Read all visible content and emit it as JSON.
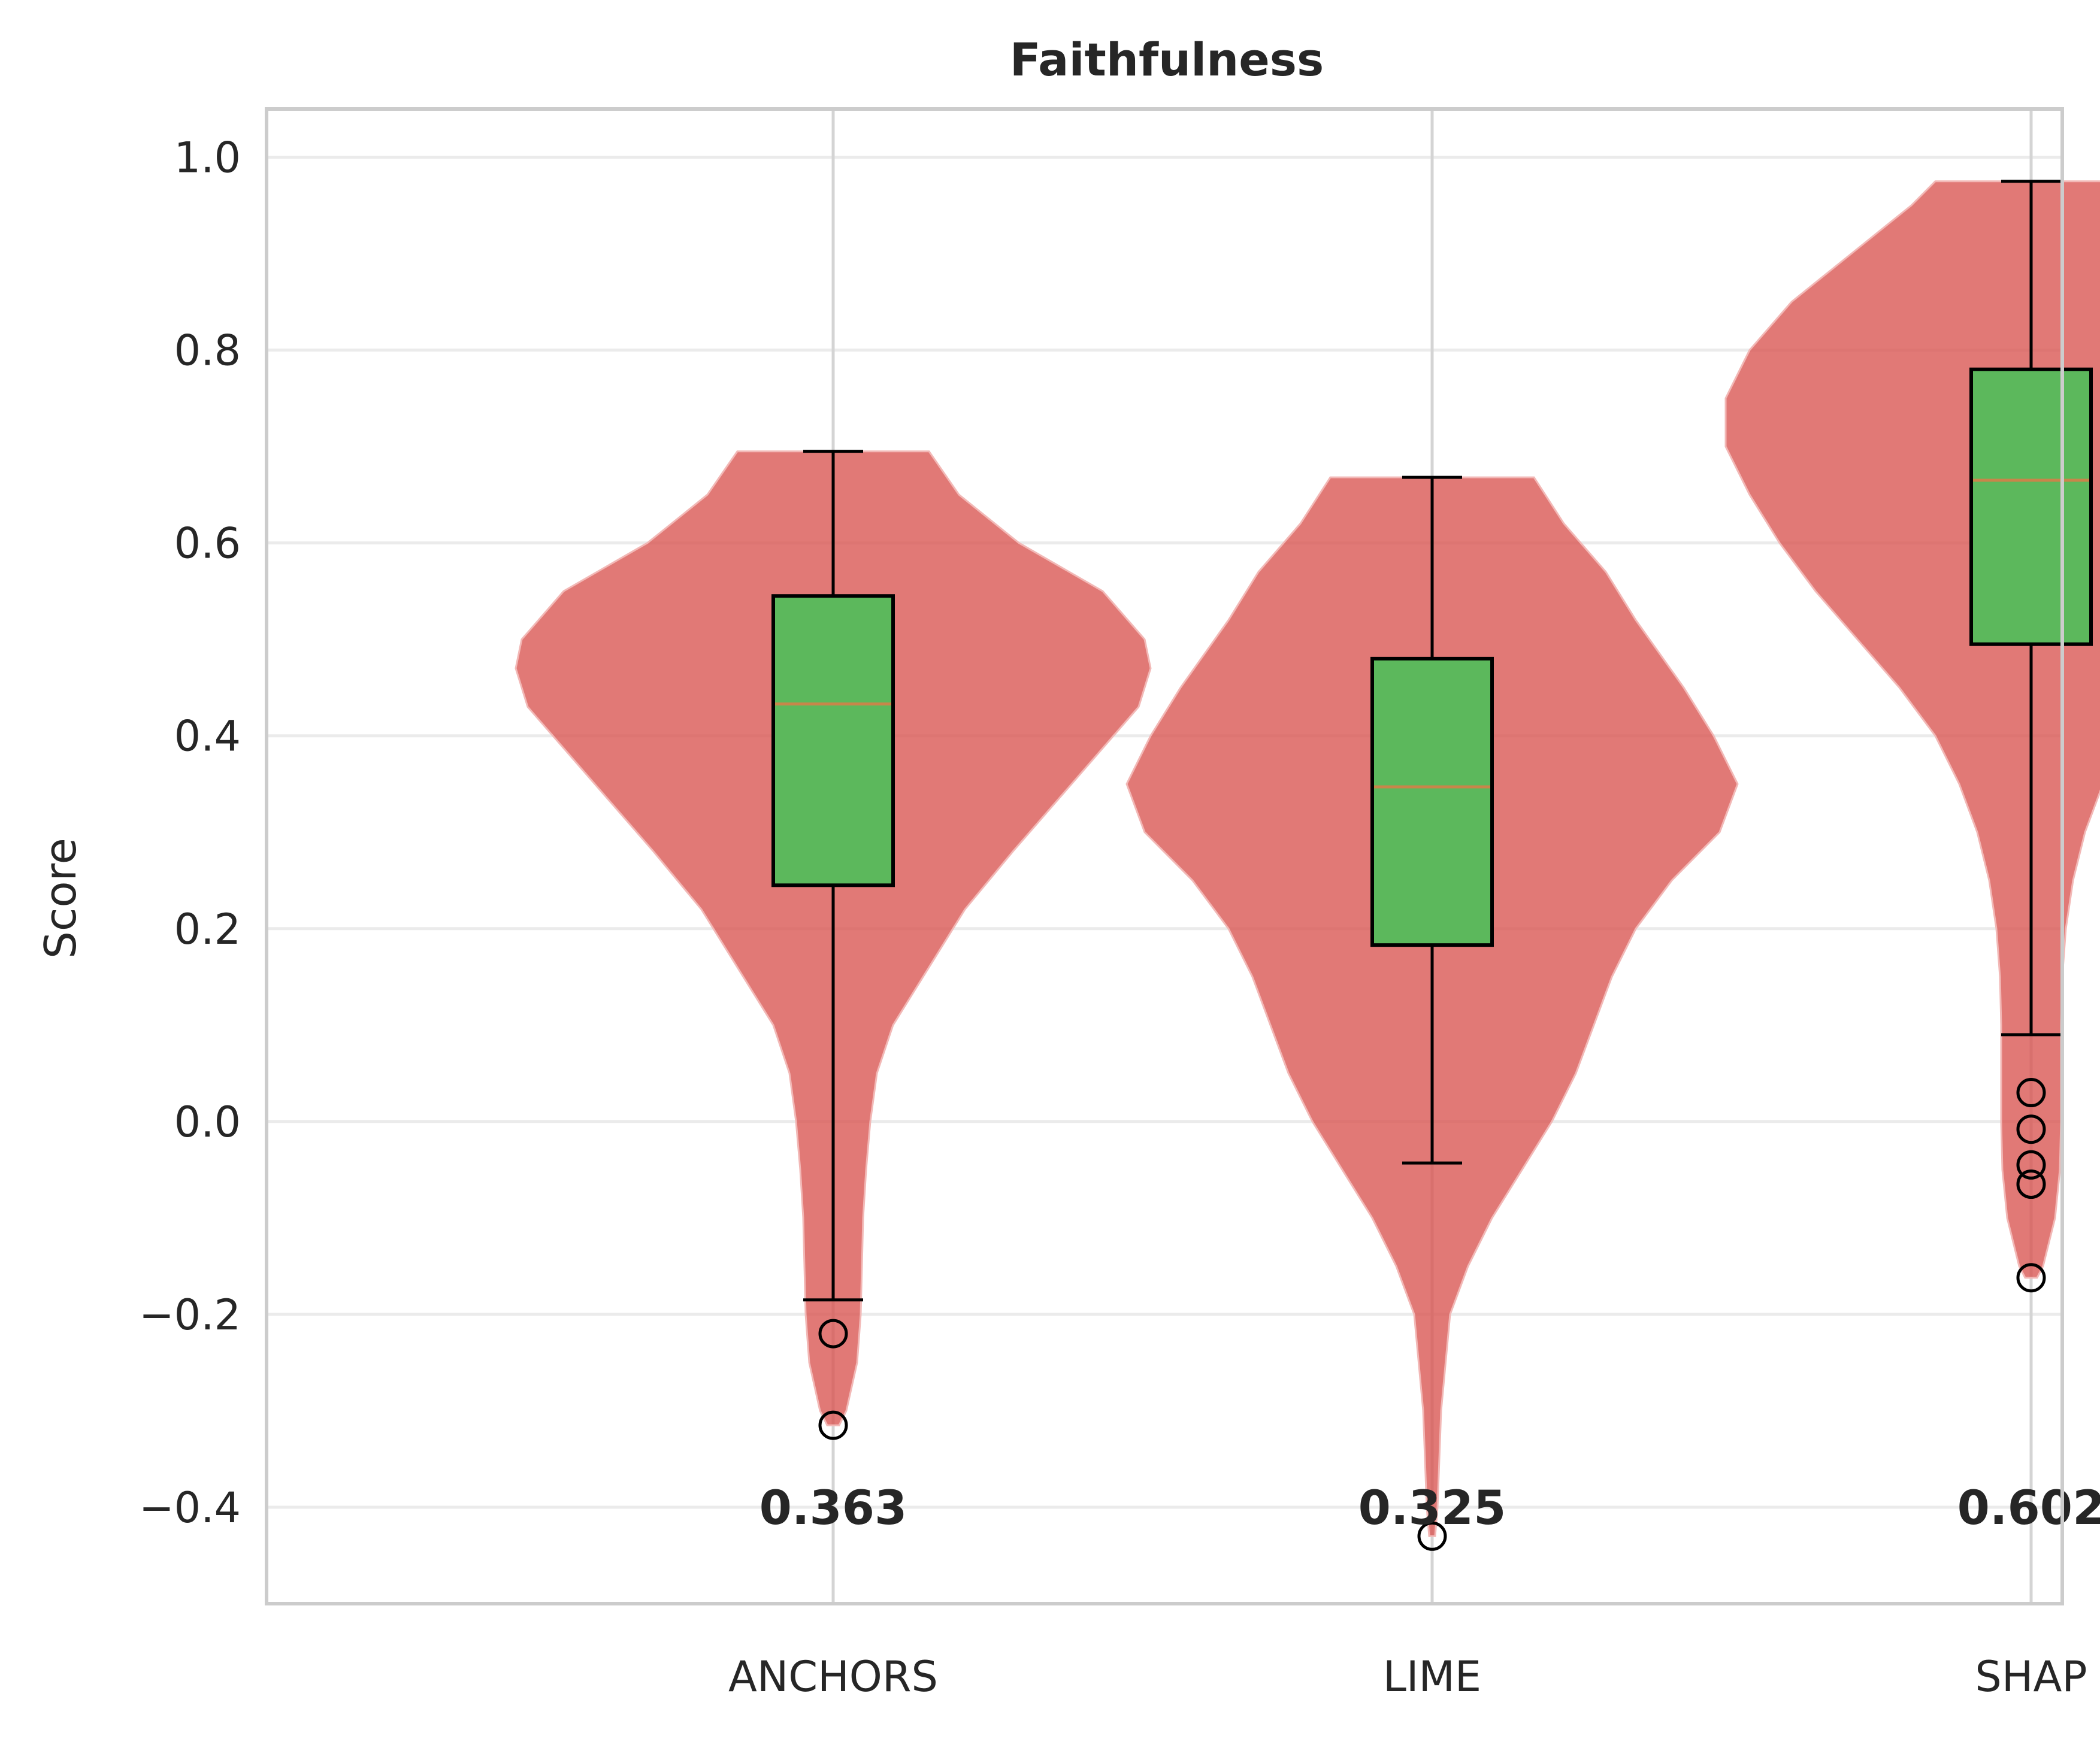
{
  "chart_data": {
    "type": "violin",
    "title": "Faithfulness",
    "xlabel": "",
    "ylabel": "Score",
    "ylim": [
      -0.5,
      1.05
    ],
    "yticks": [
      -0.4,
      -0.2,
      0.0,
      0.2,
      0.4,
      0.6,
      0.8,
      1.0
    ],
    "ytick_labels": [
      "−0.4",
      "−0.2",
      "0.0",
      "0.2",
      "0.4",
      "0.6",
      "0.8",
      "1.0"
    ],
    "grid": true,
    "categories": [
      "ANCHORS",
      "LIME",
      "SHAP"
    ],
    "mean_labels": [
      "0.363",
      "0.325",
      "0.602"
    ],
    "colors": {
      "violin": "#d9534f",
      "box": "#5cb85c",
      "median": "#c8864a",
      "whisker": "#000000",
      "grid": "#ebebeb",
      "frame": "#cccccc",
      "text": "#262626"
    },
    "box_stats": [
      {
        "name": "ANCHORS",
        "whislo": -0.185,
        "q1": 0.245,
        "med": 0.433,
        "q3": 0.545,
        "whishi": 0.695,
        "fliers": [
          -0.22,
          -0.315
        ]
      },
      {
        "name": "LIME",
        "whislo": -0.043,
        "q1": 0.183,
        "med": 0.347,
        "q3": 0.48,
        "whishi": 0.668,
        "fliers": [
          -0.43
        ]
      },
      {
        "name": "SHAP",
        "whislo": 0.09,
        "q1": 0.495,
        "med": 0.665,
        "q3": 0.78,
        "whishi": 0.975,
        "fliers": [
          0.03,
          -0.008,
          -0.045,
          -0.065,
          -0.162
        ]
      }
    ],
    "violins": [
      {
        "name": "ANCHORS",
        "min": -0.315,
        "max": 0.695,
        "profile": [
          [
            0.695,
            0.16
          ],
          [
            0.65,
            0.21
          ],
          [
            0.6,
            0.31
          ],
          [
            0.55,
            0.45
          ],
          [
            0.5,
            0.52
          ],
          [
            0.47,
            0.53
          ],
          [
            0.43,
            0.51
          ],
          [
            0.38,
            0.44
          ],
          [
            0.33,
            0.37
          ],
          [
            0.28,
            0.3
          ],
          [
            0.22,
            0.22
          ],
          [
            0.15,
            0.15
          ],
          [
            0.1,
            0.1
          ],
          [
            0.05,
            0.073
          ],
          [
            0.0,
            0.062
          ],
          [
            -0.05,
            0.055
          ],
          [
            -0.1,
            0.05
          ],
          [
            -0.15,
            0.048
          ],
          [
            -0.2,
            0.046
          ],
          [
            -0.25,
            0.04
          ],
          [
            -0.3,
            0.022
          ],
          [
            -0.315,
            0.01
          ]
        ]
      },
      {
        "name": "LIME",
        "min": -0.43,
        "max": 0.668,
        "profile": [
          [
            0.668,
            0.17
          ],
          [
            0.62,
            0.22
          ],
          [
            0.57,
            0.29
          ],
          [
            0.52,
            0.34
          ],
          [
            0.45,
            0.42
          ],
          [
            0.4,
            0.47
          ],
          [
            0.35,
            0.51
          ],
          [
            0.3,
            0.48
          ],
          [
            0.25,
            0.4
          ],
          [
            0.2,
            0.34
          ],
          [
            0.15,
            0.3
          ],
          [
            0.1,
            0.27
          ],
          [
            0.05,
            0.24
          ],
          [
            0.0,
            0.2
          ],
          [
            -0.05,
            0.15
          ],
          [
            -0.1,
            0.1
          ],
          [
            -0.15,
            0.06
          ],
          [
            -0.2,
            0.03
          ],
          [
            -0.3,
            0.015
          ],
          [
            -0.4,
            0.009
          ],
          [
            -0.43,
            0.005
          ]
        ]
      },
      {
        "name": "SHAP",
        "min": -0.162,
        "max": 0.975,
        "profile": [
          [
            0.975,
            0.16
          ],
          [
            0.95,
            0.2
          ],
          [
            0.9,
            0.3
          ],
          [
            0.85,
            0.4
          ],
          [
            0.8,
            0.47
          ],
          [
            0.75,
            0.51
          ],
          [
            0.7,
            0.51
          ],
          [
            0.65,
            0.47
          ],
          [
            0.6,
            0.42
          ],
          [
            0.55,
            0.36
          ],
          [
            0.5,
            0.29
          ],
          [
            0.45,
            0.22
          ],
          [
            0.4,
            0.16
          ],
          [
            0.35,
            0.12
          ],
          [
            0.3,
            0.09
          ],
          [
            0.25,
            0.07
          ],
          [
            0.2,
            0.058
          ],
          [
            0.15,
            0.052
          ],
          [
            0.1,
            0.05
          ],
          [
            0.05,
            0.05
          ],
          [
            0.0,
            0.05
          ],
          [
            -0.05,
            0.048
          ],
          [
            -0.1,
            0.04
          ],
          [
            -0.15,
            0.02
          ],
          [
            -0.162,
            0.01
          ]
        ]
      }
    ]
  }
}
